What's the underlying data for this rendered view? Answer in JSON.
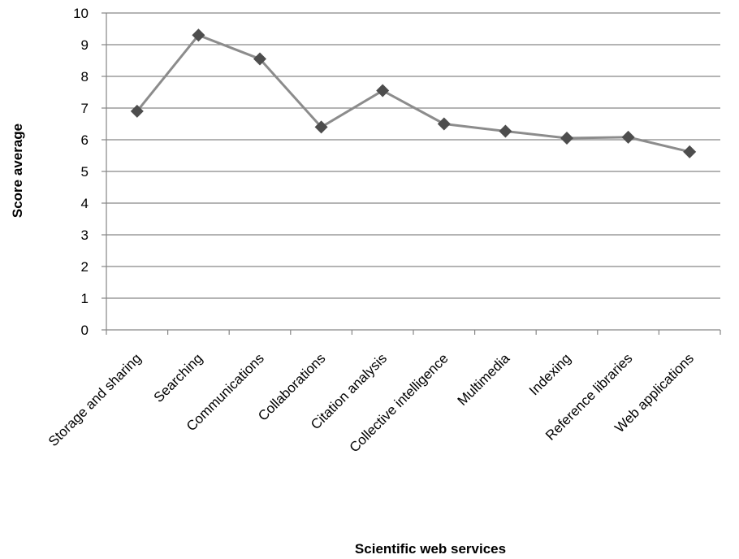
{
  "chart_data": {
    "type": "line",
    "title": "",
    "xlabel": "Scientific web services",
    "ylabel": "Score average",
    "categories": [
      "Storage and sharing",
      "Searching",
      "Communications",
      "Collaborations",
      "Citation analysis",
      "Collective intelligence",
      "Multimedia",
      "Indexing",
      "Reference libraries",
      "Web applications"
    ],
    "series": [
      {
        "values": [
          6.9,
          9.3,
          8.55,
          6.4,
          7.55,
          6.5,
          6.27,
          6.05,
          6.08,
          5.62
        ]
      }
    ],
    "ylim": [
      0,
      10
    ],
    "yticks": [
      0,
      1,
      2,
      3,
      4,
      5,
      6,
      7,
      8,
      9,
      10
    ],
    "grid": true,
    "legend": "none",
    "colors": {
      "line": "#8c8c8c",
      "marker": "#4d4d4d",
      "grid": "#868686",
      "axis": "#868686"
    },
    "marker": "diamond"
  }
}
